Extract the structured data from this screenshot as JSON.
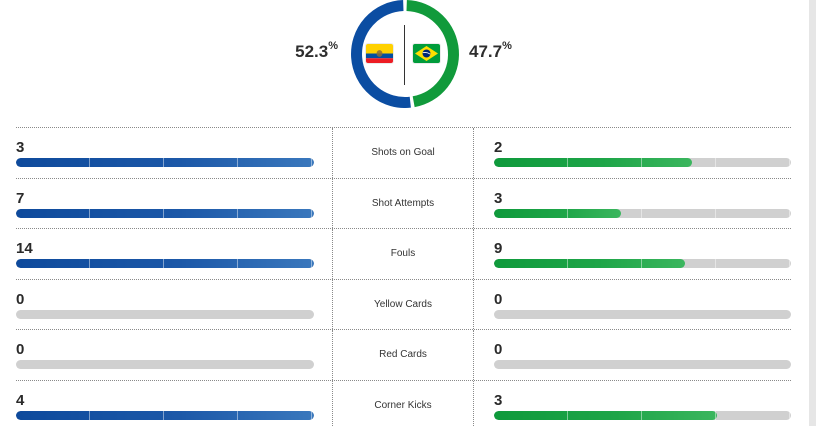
{
  "possession": {
    "home": {
      "value": "52.3",
      "unit": "%",
      "fraction": 0.523,
      "color": "#0b4da2",
      "flag_icon": "ecuador-flag-icon"
    },
    "away": {
      "value": "47.7",
      "unit": "%",
      "fraction": 0.477,
      "color": "#119a3b",
      "flag_icon": "brazil-flag-icon"
    }
  },
  "stats": [
    {
      "label": "Shots on Goal",
      "home": "3",
      "away": "2",
      "home_fill": 1.0,
      "away_fill": 0.667
    },
    {
      "label": "Shot Attempts",
      "home": "7",
      "away": "3",
      "home_fill": 1.0,
      "away_fill": 0.429
    },
    {
      "label": "Fouls",
      "home": "14",
      "away": "9",
      "home_fill": 1.0,
      "away_fill": 0.643
    },
    {
      "label": "Yellow Cards",
      "home": "0",
      "away": "0",
      "home_fill": 0.0,
      "away_fill": 0.0
    },
    {
      "label": "Red Cards",
      "home": "0",
      "away": "0",
      "home_fill": 0.0,
      "away_fill": 0.0
    },
    {
      "label": "Corner Kicks",
      "home": "4",
      "away": "3",
      "home_fill": 1.0,
      "away_fill": 0.75
    }
  ],
  "colors": {
    "home_bar": "#1c58a8",
    "away_bar": "#1ea548",
    "empty_bar": "#d0d0d0"
  }
}
